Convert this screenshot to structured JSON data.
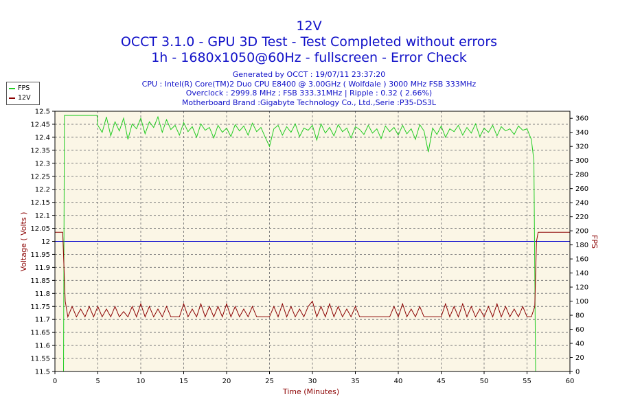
{
  "header": {
    "title": "12V",
    "line1": "OCCT 3.1.0 - GPU 3D Test - Test Completed without errors",
    "line2": "1h - 1680x1050@60Hz - fullscreen - Error Check"
  },
  "info": {
    "generated": "Generated by OCCT : 19/07/11 23:37:20",
    "cpu": "CPU : Intel(R) Core(TM)2 Duo CPU E8400 @ 3.00GHz ( Wolfdale ) 3000 MHz FSB 333MHz",
    "overclock": "Overclock : 2999.8 MHz ; FSB 333.31MHz | Ripple : 0.32 ( 2.66%)",
    "motherboard": "Motherboard Brand :Gigabyte Technology Co., Ltd.,Serie :P35-DS3L"
  },
  "colors": {
    "fps": "#22cc22",
    "voltage": "#8b0000",
    "reference": "#0000cc",
    "plot_bg": "#fbf6e6",
    "axis_text": "#8b0000"
  },
  "chart_data": {
    "type": "line",
    "title": "12V",
    "xlabel": "Time (Minutes)",
    "ylabel_left": "Voltage ( Volts )",
    "ylabel_right": "FPS",
    "xlim": [
      0,
      60
    ],
    "ylim_left": [
      11.5,
      12.5
    ],
    "ylim_right": [
      0,
      370
    ],
    "x_ticks": [
      0,
      5,
      10,
      15,
      20,
      25,
      30,
      35,
      40,
      45,
      50,
      55,
      60
    ],
    "y_left_ticks": [
      "11.5",
      "11.55",
      "11.6",
      "11.65",
      "11.7",
      "11.75",
      "11.8",
      "11.85",
      "11.9",
      "11.95",
      "12",
      "12.05",
      "12.1",
      "12.15",
      "12.2",
      "12.25",
      "12.3",
      "12.35",
      "12.4",
      "12.45",
      "12.5"
    ],
    "y_right_ticks": [
      0,
      20,
      40,
      60,
      80,
      100,
      120,
      140,
      160,
      180,
      200,
      220,
      240,
      260,
      280,
      300,
      320,
      340,
      360
    ],
    "grid": true,
    "legend_position": "top-left",
    "reference_line": 12.0,
    "series": [
      {
        "name": "FPS",
        "axis": "right",
        "x": [
          0,
          1.0,
          1.1,
          2,
          3,
          4,
          4.9,
          5,
          5.5,
          6,
          6.5,
          7,
          7.5,
          8,
          8.5,
          9,
          9.5,
          10,
          10.5,
          11,
          11.5,
          12,
          12.5,
          13,
          13.5,
          14,
          14.5,
          15,
          15.5,
          16,
          16.5,
          17,
          17.5,
          18,
          18.5,
          19,
          19.5,
          20,
          20.5,
          21,
          21.5,
          22,
          22.5,
          23,
          23.5,
          24,
          24.5,
          25,
          25.5,
          26,
          26.5,
          27,
          27.5,
          28,
          28.5,
          29,
          29.5,
          30,
          30.5,
          31,
          31.5,
          32,
          32.5,
          33,
          33.5,
          34,
          34.5,
          35,
          35.5,
          36,
          36.5,
          37,
          37.5,
          38,
          38.5,
          39,
          39.5,
          40,
          40.5,
          41,
          41.5,
          42,
          42.5,
          43,
          43.5,
          44,
          44.5,
          45,
          45.5,
          46,
          46.5,
          47,
          47.5,
          48,
          48.5,
          49,
          49.5,
          50,
          50.5,
          51,
          51.5,
          52,
          52.5,
          53,
          53.5,
          54,
          54.5,
          55,
          55.5,
          55.8,
          56.0,
          60
        ],
        "values": [
          0,
          0,
          364,
          364,
          364,
          364,
          364,
          350,
          340,
          362,
          335,
          355,
          342,
          360,
          330,
          352,
          345,
          360,
          338,
          355,
          347,
          362,
          340,
          358,
          344,
          350,
          336,
          354,
          341,
          348,
          333,
          352,
          343,
          347,
          332,
          350,
          340,
          346,
          334,
          351,
          342,
          349,
          336,
          353,
          341,
          347,
          333,
          320,
          345,
          350,
          336,
          348,
          340,
          352,
          334,
          346,
          343,
          350,
          329,
          352,
          339,
          347,
          335,
          351,
          341,
          346,
          332,
          348,
          344,
          337,
          350,
          339,
          345,
          331,
          349,
          341,
          347,
          336,
          350,
          338,
          345,
          330,
          351,
          342,
          312,
          346,
          337,
          349,
          333,
          345,
          341,
          350,
          336,
          347,
          339,
          352,
          334,
          346,
          340,
          350,
          335,
          348,
          342,
          345,
          337,
          349,
          343,
          345,
          330,
          300,
          0,
          0
        ]
      },
      {
        "name": "12V",
        "axis": "left",
        "x": [
          0,
          0.9,
          1.0,
          1.2,
          1.5,
          2,
          2.5,
          3,
          3.5,
          4,
          4.5,
          5,
          5.5,
          6,
          6.5,
          7,
          7.5,
          8,
          8.5,
          9,
          9.5,
          10,
          10.5,
          11,
          11.5,
          12,
          12.5,
          13,
          13.5,
          14,
          14.5,
          15,
          15.5,
          16,
          16.5,
          17,
          17.5,
          18,
          18.5,
          19,
          19.5,
          20,
          20.5,
          21,
          21.5,
          22,
          22.5,
          23,
          23.5,
          24,
          24.5,
          25,
          25.5,
          26,
          26.5,
          27,
          27.5,
          28,
          28.5,
          29,
          29.5,
          30,
          30.5,
          31,
          31.5,
          32,
          32.5,
          33,
          33.5,
          34,
          34.5,
          35,
          35.5,
          36,
          36.5,
          37,
          37.5,
          38,
          38.5,
          39,
          39.5,
          40,
          40.5,
          41,
          41.5,
          42,
          42.5,
          43,
          43.5,
          44,
          44.5,
          45,
          45.5,
          46,
          46.5,
          47,
          47.5,
          48,
          48.5,
          49,
          49.5,
          50,
          50.5,
          51,
          51.5,
          52,
          52.5,
          53,
          53.5,
          54,
          54.5,
          55,
          55.5,
          55.9,
          56.1,
          56.3,
          60
        ],
        "values": [
          12.035,
          12.035,
          11.95,
          11.77,
          11.71,
          11.75,
          11.71,
          11.74,
          11.71,
          11.75,
          11.71,
          11.75,
          11.71,
          11.74,
          11.71,
          11.75,
          11.71,
          11.73,
          11.71,
          11.75,
          11.71,
          11.76,
          11.71,
          11.75,
          11.71,
          11.74,
          11.71,
          11.75,
          11.71,
          11.71,
          11.71,
          11.76,
          11.71,
          11.74,
          11.71,
          11.76,
          11.71,
          11.75,
          11.71,
          11.75,
          11.71,
          11.76,
          11.71,
          11.75,
          11.71,
          11.74,
          11.71,
          11.75,
          11.71,
          11.71,
          11.71,
          11.71,
          11.75,
          11.71,
          11.76,
          11.71,
          11.75,
          11.71,
          11.74,
          11.71,
          11.75,
          11.77,
          11.71,
          11.75,
          11.71,
          11.76,
          11.71,
          11.75,
          11.71,
          11.74,
          11.71,
          11.75,
          11.71,
          11.71,
          11.71,
          11.71,
          11.71,
          11.71,
          11.71,
          11.71,
          11.75,
          11.71,
          11.76,
          11.71,
          11.74,
          11.71,
          11.75,
          11.71,
          11.71,
          11.71,
          11.71,
          11.71,
          11.76,
          11.71,
          11.75,
          11.71,
          11.76,
          11.71,
          11.75,
          11.71,
          11.74,
          11.71,
          11.75,
          11.71,
          11.76,
          11.71,
          11.75,
          11.71,
          11.74,
          11.71,
          11.75,
          11.71,
          11.71,
          11.75,
          12.0,
          12.035,
          12.035
        ]
      }
    ]
  }
}
